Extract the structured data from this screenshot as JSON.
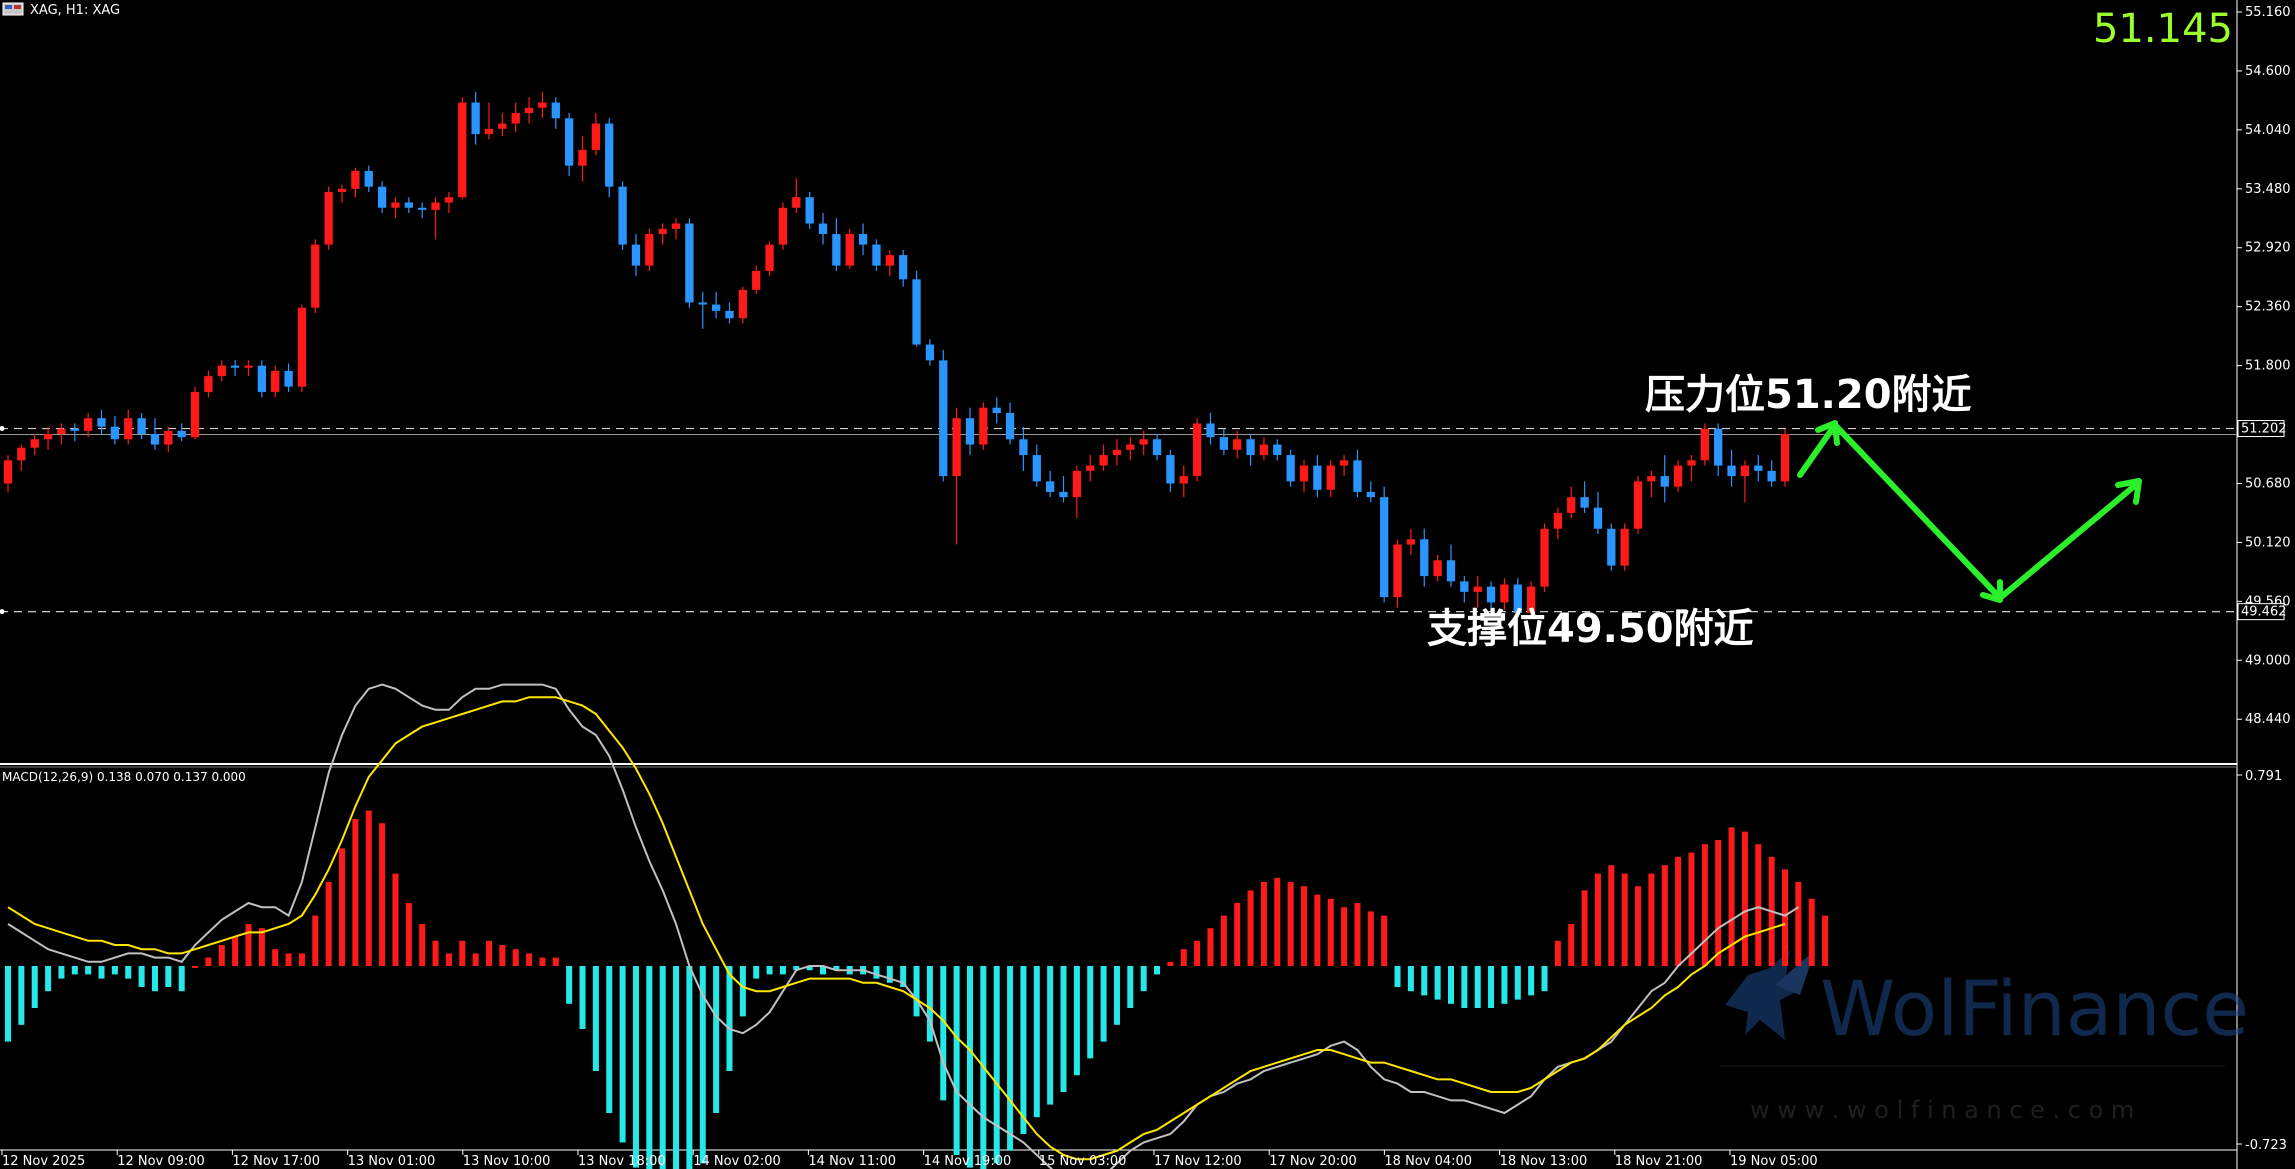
{
  "window": {
    "title": "XAG, H1:  XAG",
    "live_price": "51.145",
    "price_color": "#9bff2c"
  },
  "colors": {
    "bull": "#ff1a1a",
    "bear": "#2b95ff",
    "macd_line": "#c0c0c0",
    "signal_line": "#ffe600",
    "hist_pos": "#ff1a1a",
    "hist_neg": "#25e8e8",
    "arrow": "#2bef2b",
    "level_box": "#000000"
  },
  "annotations": {
    "resistance": "压力位51.20附近",
    "support": "支撑位49.50附近"
  },
  "watermark": {
    "brand": "WolFinance",
    "url": "w w w . w o l f i n a n c e . c o m"
  },
  "chart_data": [
    {
      "type": "candlestick",
      "symbol": "XAG",
      "timeframe": "H1",
      "ylim": [
        48.1,
        55.16
      ],
      "y_ticks": [
        "55.160",
        "54.600",
        "54.040",
        "53.480",
        "52.920",
        "52.360",
        "51.800",
        "50.680",
        "50.120",
        "49.560",
        "49.000",
        "48.440"
      ],
      "x_ticks": [
        "12 Nov 2025",
        "12 Nov 09:00",
        "12 Nov 17:00",
        "13 Nov 01:00",
        "13 Nov 10:00",
        "13 Nov 18:00",
        "14 Nov 02:00",
        "14 Nov 11:00",
        "14 Nov 19:00",
        "15 Nov 03:00",
        "17 Nov 12:00",
        "17 Nov 20:00",
        "18 Nov 04:00",
        "18 Nov 13:00",
        "18 Nov 21:00",
        "19 Nov 05:00"
      ],
      "levels": [
        {
          "value": 51.202,
          "label": "51.202",
          "name": "resistance"
        },
        {
          "value": 49.462,
          "label": "49.462",
          "name": "support"
        }
      ],
      "ohlc": [
        [
          50.68,
          50.95,
          50.6,
          50.9
        ],
        [
          50.9,
          51.05,
          50.8,
          51.02
        ],
        [
          51.02,
          51.15,
          50.95,
          51.1
        ],
        [
          51.1,
          51.22,
          51.0,
          51.15
        ],
        [
          51.15,
          51.25,
          51.05,
          51.2
        ],
        [
          51.2,
          51.25,
          51.08,
          51.18
        ],
        [
          51.18,
          51.35,
          51.12,
          51.3
        ],
        [
          51.3,
          51.38,
          51.15,
          51.22
        ],
        [
          51.22,
          51.32,
          51.05,
          51.1
        ],
        [
          51.1,
          51.38,
          51.05,
          51.3
        ],
        [
          51.3,
          51.35,
          51.1,
          51.15
        ],
        [
          51.15,
          51.3,
          51.0,
          51.05
        ],
        [
          51.05,
          51.22,
          50.98,
          51.18
        ],
        [
          51.18,
          51.25,
          51.08,
          51.12
        ],
        [
          51.12,
          51.6,
          51.1,
          51.55
        ],
        [
          51.55,
          51.75,
          51.5,
          51.7
        ],
        [
          51.7,
          51.85,
          51.65,
          51.8
        ],
        [
          51.8,
          51.85,
          51.7,
          51.78
        ],
        [
          51.78,
          51.85,
          51.7,
          51.8
        ],
        [
          51.8,
          51.85,
          51.5,
          51.55
        ],
        [
          51.55,
          51.8,
          51.5,
          51.75
        ],
        [
          51.75,
          51.82,
          51.55,
          51.6
        ],
        [
          51.6,
          52.38,
          51.55,
          52.35
        ],
        [
          52.35,
          53.0,
          52.3,
          52.95
        ],
        [
          52.95,
          53.5,
          52.9,
          53.45
        ],
        [
          53.45,
          53.52,
          53.35,
          53.48
        ],
        [
          53.48,
          53.68,
          53.4,
          53.65
        ],
        [
          53.65,
          53.7,
          53.45,
          53.5
        ],
        [
          53.5,
          53.55,
          53.25,
          53.3
        ],
        [
          53.3,
          53.4,
          53.2,
          53.35
        ],
        [
          53.35,
          53.4,
          53.25,
          53.3
        ],
        [
          53.3,
          53.35,
          53.2,
          53.28
        ],
        [
          53.28,
          53.4,
          53.0,
          53.35
        ],
        [
          53.35,
          53.45,
          53.25,
          53.4
        ],
        [
          53.4,
          54.35,
          53.38,
          54.3
        ],
        [
          54.3,
          54.4,
          53.9,
          54.0
        ],
        [
          54.0,
          54.3,
          53.95,
          54.05
        ],
        [
          54.05,
          54.2,
          53.98,
          54.1
        ],
        [
          54.1,
          54.3,
          54.02,
          54.2
        ],
        [
          54.2,
          54.35,
          54.1,
          54.25
        ],
        [
          54.25,
          54.4,
          54.15,
          54.3
        ],
        [
          54.3,
          54.35,
          54.05,
          54.15
        ],
        [
          54.15,
          54.2,
          53.6,
          53.7
        ],
        [
          53.7,
          53.98,
          53.55,
          53.85
        ],
        [
          53.85,
          54.2,
          53.8,
          54.1
        ],
        [
          54.1,
          54.15,
          53.4,
          53.5
        ],
        [
          53.5,
          53.55,
          52.9,
          52.95
        ],
        [
          52.95,
          53.05,
          52.65,
          52.75
        ],
        [
          52.75,
          53.1,
          52.7,
          53.05
        ],
        [
          53.05,
          53.15,
          52.95,
          53.1
        ],
        [
          53.1,
          53.2,
          53.0,
          53.15
        ],
        [
          53.15,
          53.2,
          52.35,
          52.4
        ],
        [
          52.4,
          52.5,
          52.15,
          52.38
        ],
        [
          52.38,
          52.5,
          52.25,
          52.32
        ],
        [
          52.32,
          52.4,
          52.2,
          52.25
        ],
        [
          52.25,
          52.55,
          52.2,
          52.52
        ],
        [
          52.52,
          52.75,
          52.48,
          52.7
        ],
        [
          52.7,
          52.98,
          52.65,
          52.95
        ],
        [
          52.95,
          53.35,
          52.9,
          53.3
        ],
        [
          53.3,
          53.58,
          53.25,
          53.4
        ],
        [
          53.4,
          53.45,
          53.1,
          53.15
        ],
        [
          53.15,
          53.25,
          52.95,
          53.05
        ],
        [
          53.05,
          53.2,
          52.7,
          52.75
        ],
        [
          52.75,
          53.1,
          52.72,
          53.05
        ],
        [
          53.05,
          53.15,
          52.85,
          52.95
        ],
        [
          52.95,
          53.0,
          52.7,
          52.75
        ],
        [
          52.75,
          52.9,
          52.65,
          52.85
        ],
        [
          52.85,
          52.9,
          52.55,
          52.62
        ],
        [
          52.62,
          52.7,
          51.98,
          52.0
        ],
        [
          52.0,
          52.05,
          51.8,
          51.85
        ],
        [
          51.85,
          51.95,
          50.7,
          50.75
        ],
        [
          50.75,
          51.4,
          50.1,
          51.3
        ],
        [
          51.3,
          51.4,
          50.95,
          51.05
        ],
        [
          51.05,
          51.45,
          51.0,
          51.4
        ],
        [
          51.4,
          51.5,
          51.25,
          51.35
        ],
        [
          51.35,
          51.45,
          51.05,
          51.1
        ],
        [
          51.1,
          51.22,
          50.8,
          50.95
        ],
        [
          50.95,
          51.05,
          50.65,
          50.7
        ],
        [
          50.7,
          50.8,
          50.55,
          50.6
        ],
        [
          50.6,
          50.75,
          50.5,
          50.55
        ],
        [
          50.55,
          50.85,
          50.35,
          50.8
        ],
        [
          50.8,
          50.95,
          50.7,
          50.85
        ],
        [
          50.85,
          51.05,
          50.8,
          50.95
        ],
        [
          50.95,
          51.1,
          50.85,
          51.0
        ],
        [
          51.0,
          51.12,
          50.9,
          51.05
        ],
        [
          51.05,
          51.18,
          50.95,
          51.1
        ],
        [
          51.1,
          51.15,
          50.9,
          50.95
        ],
        [
          50.95,
          51.0,
          50.6,
          50.68
        ],
        [
          50.68,
          50.85,
          50.55,
          50.75
        ],
        [
          50.75,
          51.3,
          50.7,
          51.25
        ],
        [
          51.25,
          51.35,
          51.05,
          51.12
        ],
        [
          51.12,
          51.2,
          50.95,
          51.0
        ],
        [
          51.0,
          51.18,
          50.92,
          51.1
        ],
        [
          51.1,
          51.15,
          50.85,
          50.95
        ],
        [
          50.95,
          51.12,
          50.9,
          51.05
        ],
        [
          51.05,
          51.1,
          50.9,
          50.95
        ],
        [
          50.95,
          51.0,
          50.65,
          50.7
        ],
        [
          50.7,
          50.9,
          50.6,
          50.85
        ],
        [
          50.85,
          50.95,
          50.55,
          50.62
        ],
        [
          50.62,
          50.9,
          50.55,
          50.85
        ],
        [
          50.85,
          50.95,
          50.75,
          50.9
        ],
        [
          50.9,
          51.0,
          50.55,
          50.6
        ],
        [
          50.6,
          50.7,
          50.5,
          50.55
        ],
        [
          50.55,
          50.65,
          49.55,
          49.6
        ],
        [
          49.6,
          50.15,
          49.5,
          50.1
        ],
        [
          50.1,
          50.25,
          50.0,
          50.15
        ],
        [
          50.15,
          50.25,
          49.7,
          49.8
        ],
        [
          49.8,
          50.0,
          49.75,
          49.95
        ],
        [
          49.95,
          50.1,
          49.7,
          49.75
        ],
        [
          49.75,
          49.8,
          49.55,
          49.65
        ],
        [
          49.65,
          49.8,
          49.5,
          49.7
        ],
        [
          49.7,
          49.75,
          49.45,
          49.55
        ],
        [
          49.55,
          49.78,
          49.48,
          49.72
        ],
        [
          49.72,
          49.78,
          49.4,
          49.45
        ],
        [
          49.45,
          49.75,
          49.4,
          49.7
        ],
        [
          49.7,
          50.3,
          49.65,
          50.25
        ],
        [
          50.25,
          50.45,
          50.15,
          50.4
        ],
        [
          50.4,
          50.65,
          50.35,
          50.55
        ],
        [
          50.55,
          50.7,
          50.4,
          50.45
        ],
        [
          50.45,
          50.6,
          50.2,
          50.25
        ],
        [
          50.25,
          50.3,
          49.85,
          49.9
        ],
        [
          49.9,
          50.3,
          49.85,
          50.25
        ],
        [
          50.25,
          50.75,
          50.2,
          50.7
        ],
        [
          50.7,
          50.8,
          50.55,
          50.75
        ],
        [
          50.75,
          50.95,
          50.5,
          50.65
        ],
        [
          50.65,
          50.9,
          50.6,
          50.85
        ],
        [
          50.85,
          50.95,
          50.7,
          50.9
        ],
        [
          50.9,
          51.25,
          50.85,
          51.2
        ],
        [
          51.2,
          51.25,
          50.75,
          50.85
        ],
        [
          50.85,
          51.0,
          50.65,
          50.75
        ],
        [
          50.75,
          50.9,
          50.5,
          50.85
        ],
        [
          50.85,
          50.95,
          50.7,
          50.8
        ],
        [
          50.8,
          50.9,
          50.65,
          50.7
        ],
        [
          50.7,
          51.2,
          50.65,
          51.15
        ]
      ]
    },
    {
      "type": "macd",
      "label": "MACD(12,26,9) 0.138 0.070 0.137 0.000",
      "ylim": [
        -0.723,
        0.791
      ],
      "y_ticks": [
        "0.791",
        "-0.723"
      ],
      "macd": [
        0.1,
        0.08,
        0.06,
        0.04,
        0.03,
        0.02,
        0.01,
        0.01,
        0.02,
        0.03,
        0.03,
        0.02,
        0.02,
        0.01,
        0.05,
        0.08,
        0.11,
        0.13,
        0.15,
        0.14,
        0.14,
        0.12,
        0.2,
        0.33,
        0.46,
        0.55,
        0.62,
        0.66,
        0.67,
        0.66,
        0.64,
        0.62,
        0.61,
        0.61,
        0.64,
        0.66,
        0.66,
        0.67,
        0.67,
        0.67,
        0.67,
        0.66,
        0.61,
        0.57,
        0.55,
        0.5,
        0.42,
        0.33,
        0.25,
        0.18,
        0.1,
        0.0,
        -0.07,
        -0.12,
        -0.15,
        -0.16,
        -0.14,
        -0.11,
        -0.06,
        -0.01,
        0.0,
        0.0,
        -0.01,
        -0.01,
        -0.01,
        -0.02,
        -0.03,
        -0.04,
        -0.08,
        -0.13,
        -0.23,
        -0.3,
        -0.33,
        -0.36,
        -0.38,
        -0.4,
        -0.42,
        -0.45,
        -0.48,
        -0.51,
        -0.52,
        -0.51,
        -0.5,
        -0.47,
        -0.44,
        -0.42,
        -0.41,
        -0.4,
        -0.37,
        -0.33,
        -0.31,
        -0.3,
        -0.28,
        -0.27,
        -0.25,
        -0.24,
        -0.23,
        -0.22,
        -0.21,
        -0.19,
        -0.18,
        -0.2,
        -0.24,
        -0.27,
        -0.28,
        -0.3,
        -0.3,
        -0.31,
        -0.32,
        -0.32,
        -0.33,
        -0.34,
        -0.35,
        -0.33,
        -0.31,
        -0.27,
        -0.24,
        -0.23,
        -0.22,
        -0.2,
        -0.18,
        -0.14,
        -0.1,
        -0.06,
        -0.04,
        0.0,
        0.03,
        0.06,
        0.09,
        0.11,
        0.13,
        0.14,
        0.13,
        0.12,
        0.14
      ],
      "signal": [
        0.14,
        0.12,
        0.1,
        0.09,
        0.08,
        0.07,
        0.06,
        0.06,
        0.05,
        0.05,
        0.04,
        0.04,
        0.03,
        0.03,
        0.04,
        0.05,
        0.06,
        0.07,
        0.08,
        0.08,
        0.09,
        0.1,
        0.12,
        0.17,
        0.23,
        0.3,
        0.38,
        0.45,
        0.49,
        0.53,
        0.55,
        0.57,
        0.58,
        0.59,
        0.6,
        0.61,
        0.62,
        0.63,
        0.63,
        0.64,
        0.64,
        0.64,
        0.63,
        0.62,
        0.6,
        0.56,
        0.52,
        0.47,
        0.41,
        0.34,
        0.26,
        0.18,
        0.1,
        0.04,
        -0.02,
        -0.05,
        -0.06,
        -0.06,
        -0.05,
        -0.04,
        -0.03,
        -0.03,
        -0.03,
        -0.03,
        -0.04,
        -0.04,
        -0.05,
        -0.06,
        -0.08,
        -0.1,
        -0.13,
        -0.17,
        -0.2,
        -0.24,
        -0.28,
        -0.32,
        -0.36,
        -0.4,
        -0.43,
        -0.45,
        -0.46,
        -0.46,
        -0.45,
        -0.44,
        -0.42,
        -0.4,
        -0.39,
        -0.37,
        -0.35,
        -0.33,
        -0.31,
        -0.29,
        -0.27,
        -0.25,
        -0.24,
        -0.23,
        -0.22,
        -0.21,
        -0.2,
        -0.2,
        -0.21,
        -0.22,
        -0.23,
        -0.23,
        -0.24,
        -0.25,
        -0.26,
        -0.27,
        -0.27,
        -0.28,
        -0.29,
        -0.3,
        -0.3,
        -0.3,
        -0.29,
        -0.27,
        -0.25,
        -0.23,
        -0.22,
        -0.2,
        -0.17,
        -0.14,
        -0.12,
        -0.1,
        -0.07,
        -0.05,
        -0.02,
        0.0,
        0.03,
        0.05,
        0.07,
        0.08,
        0.09,
        0.1
      ],
      "histogram": [
        -0.18,
        -0.14,
        -0.1,
        -0.06,
        -0.03,
        -0.02,
        -0.02,
        -0.03,
        -0.02,
        -0.03,
        -0.05,
        -0.06,
        -0.05,
        -0.06,
        0.0,
        0.02,
        0.05,
        0.07,
        0.1,
        0.09,
        0.04,
        0.03,
        0.03,
        0.12,
        0.2,
        0.28,
        0.35,
        0.37,
        0.34,
        0.22,
        0.15,
        0.1,
        0.06,
        0.03,
        0.06,
        0.03,
        0.06,
        0.05,
        0.04,
        0.03,
        0.02,
        0.02,
        -0.09,
        -0.15,
        -0.25,
        -0.35,
        -0.42,
        -0.48,
        -0.52,
        -0.55,
        -0.56,
        -0.55,
        -0.47,
        -0.35,
        -0.25,
        -0.12,
        -0.03,
        -0.02,
        -0.02,
        -0.01,
        -0.01,
        -0.02,
        -0.01,
        -0.02,
        -0.02,
        -0.03,
        -0.04,
        -0.05,
        -0.12,
        -0.18,
        -0.32,
        -0.45,
        -0.48,
        -0.5,
        -0.47,
        -0.44,
        -0.4,
        -0.36,
        -0.33,
        -0.3,
        -0.26,
        -0.22,
        -0.18,
        -0.14,
        -0.1,
        -0.06,
        -0.02,
        0.01,
        0.04,
        0.06,
        0.09,
        0.12,
        0.15,
        0.18,
        0.2,
        0.21,
        0.2,
        0.19,
        0.17,
        0.16,
        0.14,
        0.15,
        0.13,
        0.12,
        -0.05,
        -0.06,
        -0.07,
        -0.08,
        -0.09,
        -0.1,
        -0.1,
        -0.1,
        -0.09,
        -0.08,
        -0.07,
        -0.06,
        0.06,
        0.1,
        0.18,
        0.22,
        0.24,
        0.22,
        0.19,
        0.22,
        0.24,
        0.26,
        0.27,
        0.29,
        0.3,
        0.33,
        0.32,
        0.29,
        0.26,
        0.23,
        0.2,
        0.16,
        0.12
      ]
    }
  ]
}
